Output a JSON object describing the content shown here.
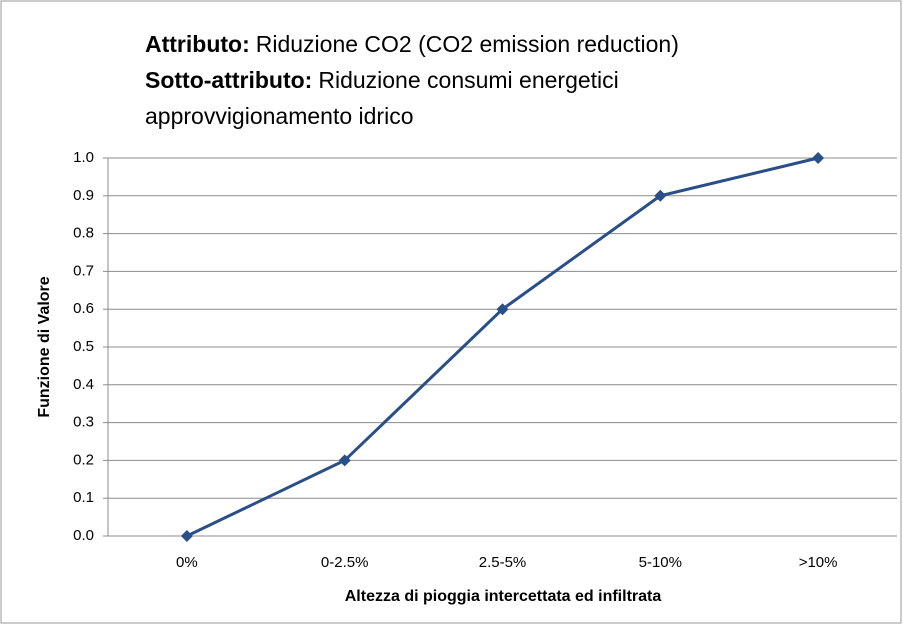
{
  "chart_data": {
    "type": "line",
    "title_lines": [
      [
        {
          "text": "Attributo:",
          "bold": true
        },
        {
          "text": "Riduzione CO2 (CO2 emission reduction)",
          "bold": false
        }
      ],
      [
        {
          "text": "Sotto-attributo:",
          "bold": true
        },
        {
          "text": "Riduzione consumi energetici",
          "bold": false
        }
      ],
      [
        {
          "text": "approvvigionamento idrico",
          "bold": false
        }
      ]
    ],
    "x_label": "Altezza di pioggia intercettata ed infiltrata",
    "y_label": "Funzione di Valore",
    "categories": [
      "0%",
      "0-2.5%",
      "2.5-5%",
      "5-10%",
      ">10%"
    ],
    "values": [
      0,
      0.2,
      0.6,
      0.9,
      1.0
    ],
    "color": "#2a4f88",
    "ylim": [
      0,
      1.0
    ],
    "yticks": [
      {
        "value": 0,
        "label": "0.0"
      },
      0.1,
      0.2,
      0.3,
      0.4,
      0.5,
      0.6,
      0.7,
      0.8,
      0.9,
      {
        "value": 1.0,
        "label": "1.0"
      }
    ],
    "grid": true
  }
}
